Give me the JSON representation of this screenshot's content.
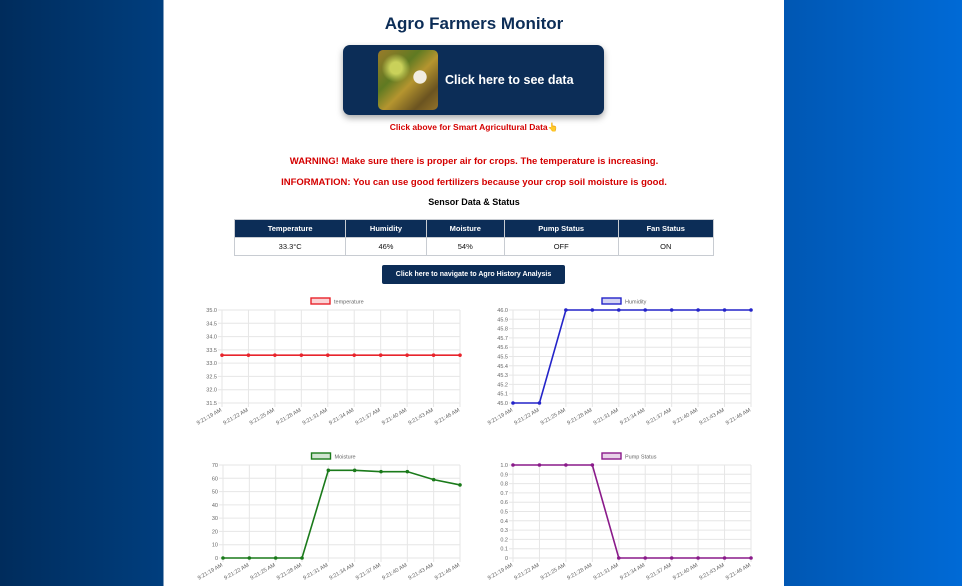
{
  "header": {
    "title": "Agro Farmers Monitor"
  },
  "data_button": {
    "label": "Click here to see data",
    "thumbnail_icon": "crop-photo"
  },
  "hint": "Click above for Smart Agricultural Data👆",
  "alerts": {
    "warning": "WARNING! Make sure there is proper air for crops. The temperature is increasing.",
    "info": "INFORMATION: You can use good fertilizers because your crop soil moisture is good."
  },
  "sensor_section": {
    "title": "Sensor Data & Status",
    "headers": [
      "Temperature",
      "Humidity",
      "Moisture",
      "Pump Status",
      "Fan Status"
    ],
    "values": [
      "33.3°C",
      "46%",
      "54%",
      "OFF",
      "ON"
    ]
  },
  "nav_button": {
    "label": "Click here to navigate to Agro History Analysis"
  },
  "colors": {
    "navy": "#0c2d57",
    "alert_red": "#d40000"
  },
  "chart_data": [
    {
      "type": "line",
      "x": [
        "9:21:19 AM",
        "9:21:22 AM",
        "9:21:25 AM",
        "9:21:28 AM",
        "9:21:31 AM",
        "9:21:34 AM",
        "9:21:37 AM",
        "9:21:40 AM",
        "9:21:43 AM",
        "9:21:46 AM"
      ],
      "series": [
        {
          "name": "temperature",
          "values": [
            33.3,
            33.3,
            33.3,
            33.3,
            33.3,
            33.3,
            33.3,
            33.3,
            33.3,
            33.3
          ],
          "color": "#e8242c"
        }
      ],
      "yticks": [
        "35.0",
        "34.5",
        "34.0",
        "33.5",
        "33.0",
        "32.5",
        "32.0",
        "31.5"
      ],
      "ylim": [
        31.5,
        35.0
      ],
      "grid": true,
      "legend": "top-center"
    },
    {
      "type": "line",
      "x": [
        "9:21:19 AM",
        "9:21:22 AM",
        "9:21:25 AM",
        "9:21:28 AM",
        "9:21:31 AM",
        "9:21:34 AM",
        "9:21:37 AM",
        "9:21:40 AM",
        "9:21:43 AM",
        "9:21:46 AM"
      ],
      "series": [
        {
          "name": "Humidity",
          "values": [
            45,
            45,
            46,
            46,
            46,
            46,
            46,
            46,
            46,
            46
          ],
          "color": "#2424c9"
        }
      ],
      "yticks": [
        "46.0",
        "45.9",
        "45.8",
        "45.7",
        "45.6",
        "45.5",
        "45.4",
        "45.3",
        "45.2",
        "45.1",
        "45.0"
      ],
      "ylim": [
        45.0,
        46.0
      ],
      "grid": true,
      "legend": "top-center"
    },
    {
      "type": "line",
      "x": [
        "9:21:19 AM",
        "9:21:22 AM",
        "9:21:25 AM",
        "9:21:28 AM",
        "9:21:31 AM",
        "9:21:34 AM",
        "9:21:37 AM",
        "9:21:40 AM",
        "9:21:43 AM",
        "9:21:46 AM"
      ],
      "series": [
        {
          "name": "Moisture",
          "values": [
            0,
            0,
            0,
            0,
            66,
            66,
            65,
            65,
            59,
            55
          ],
          "color": "#1a7a1a"
        }
      ],
      "yticks": [
        "70",
        "60",
        "50",
        "40",
        "30",
        "20",
        "10",
        "0"
      ],
      "ylim": [
        0,
        70
      ],
      "grid": true,
      "legend": "top-center"
    },
    {
      "type": "line",
      "x": [
        "9:21:19 AM",
        "9:21:22 AM",
        "9:21:25 AM",
        "9:21:28 AM",
        "9:21:31 AM",
        "9:21:34 AM",
        "9:21:37 AM",
        "9:21:40 AM",
        "9:21:43 AM",
        "9:21:46 AM"
      ],
      "series": [
        {
          "name": "Pump Status",
          "values": [
            1,
            1,
            1,
            1,
            0,
            0,
            0,
            0,
            0,
            0
          ],
          "color": "#8a1a8a"
        }
      ],
      "yticks": [
        "1.0",
        "0.9",
        "0.8",
        "0.7",
        "0.6",
        "0.5",
        "0.4",
        "0.3",
        "0.2",
        "0.1",
        "0"
      ],
      "ylim": [
        0,
        1
      ],
      "grid": true,
      "legend": "top-center"
    }
  ]
}
